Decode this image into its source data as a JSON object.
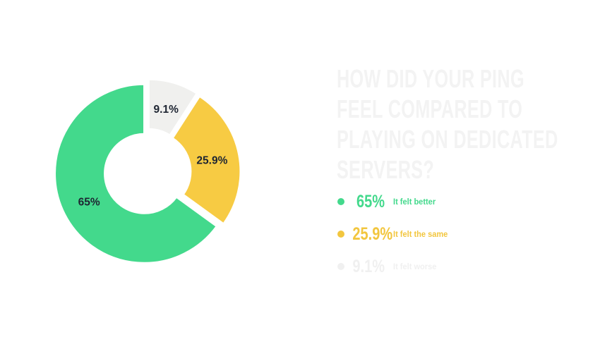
{
  "title": {
    "text": "HOW DID YOUR PING FEEL COMPARED TO PLAYING ON DEDICATED SERVERS?",
    "lines": [
      "HOW DID YOUR PING",
      "FEEL COMPARED TO",
      "PLAYING ON DEDICATED",
      "SERVERS?"
    ],
    "color": "#f3f3f3"
  },
  "chart_data": {
    "type": "pie",
    "donut": true,
    "title": "HOW DID YOUR PING FEEL COMPARED TO PLAYING ON DEDICATED SERVERS?",
    "start_angle_deg": 0,
    "direction": "clockwise",
    "legend_position": "right",
    "slices": [
      {
        "label": "It felt worse",
        "value": 9.1,
        "display": "9.1%",
        "color": "#f0f0ee"
      },
      {
        "label": "It felt the same",
        "value": 25.9,
        "display": "25.9%",
        "color": "#f7cb43"
      },
      {
        "label": "It felt better",
        "value": 65.0,
        "display": "65%",
        "color": "#43d98c"
      }
    ],
    "slice_label_color": "#1e2532"
  },
  "legend": {
    "items": [
      {
        "value": "65%",
        "label": "It felt better",
        "color": "#43d98c"
      },
      {
        "value": "25.9%",
        "label": "It felt the same",
        "color": "#f2c63f"
      },
      {
        "value": "9.1%",
        "label": "It felt worse",
        "color": "#f0f0f0"
      }
    ]
  },
  "colors": {
    "background": "#ffffff",
    "green": "#43d98c",
    "yellow": "#f7cb43",
    "light_gray": "#f0f0ee",
    "dark_text": "#1e2532",
    "faint_title": "#f3f3f3"
  }
}
